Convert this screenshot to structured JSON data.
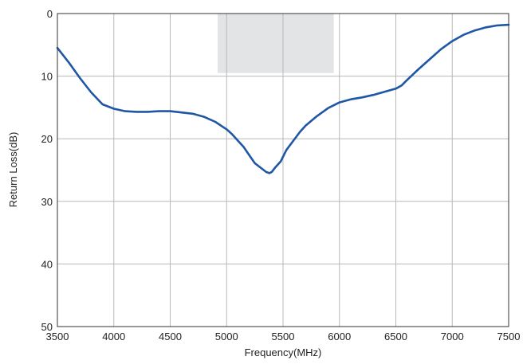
{
  "chart_data": {
    "type": "line",
    "title": "",
    "xlabel": "Frequency(MHz)",
    "ylabel": "Return Loss(dB)",
    "xlim": [
      3500,
      7500
    ],
    "ylim": [
      0,
      50
    ],
    "y_inverted": true,
    "grid": true,
    "x_ticks": [
      3500,
      4000,
      4500,
      5000,
      5500,
      6000,
      6500,
      7000,
      7500
    ],
    "y_ticks": [
      0,
      10,
      20,
      30,
      40,
      50
    ],
    "highlight_band": {
      "x": [
        4920,
        5950
      ],
      "y": [
        0,
        9.5
      ],
      "color": "#e3e4e6"
    },
    "series": [
      {
        "color": "#1f57a4",
        "x": [
          3500,
          3600,
          3700,
          3800,
          3900,
          4000,
          4100,
          4200,
          4300,
          4400,
          4500,
          4600,
          4700,
          4800,
          4900,
          5000,
          5050,
          5100,
          5150,
          5200,
          5250,
          5300,
          5350,
          5380,
          5400,
          5430,
          5480,
          5530,
          5600,
          5650,
          5700,
          5800,
          5900,
          6000,
          6100,
          6200,
          6300,
          6400,
          6500,
          6550,
          6600,
          6700,
          6800,
          6900,
          7000,
          7100,
          7200,
          7300,
          7400,
          7500
        ],
        "y": [
          5.5,
          7.8,
          10.3,
          12.6,
          14.5,
          15.2,
          15.6,
          15.7,
          15.7,
          15.6,
          15.6,
          15.8,
          16.0,
          16.5,
          17.3,
          18.5,
          19.3,
          20.3,
          21.3,
          22.6,
          23.9,
          24.6,
          25.3,
          25.5,
          25.3,
          24.6,
          23.6,
          21.8,
          20.1,
          18.9,
          17.9,
          16.4,
          15.1,
          14.2,
          13.7,
          13.4,
          13.0,
          12.5,
          12.0,
          11.5,
          10.6,
          8.9,
          7.3,
          5.7,
          4.4,
          3.4,
          2.7,
          2.2,
          1.9,
          1.8
        ]
      }
    ]
  }
}
